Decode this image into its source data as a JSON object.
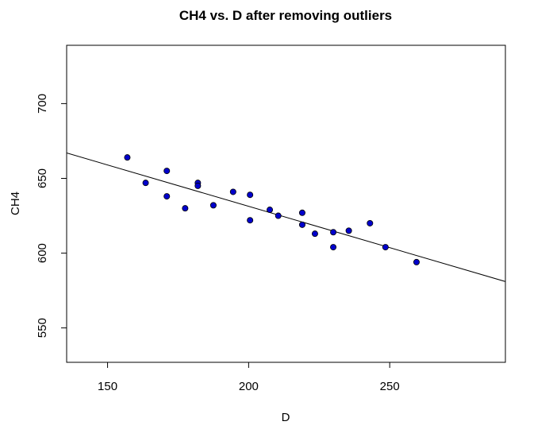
{
  "chart_data": {
    "type": "scatter",
    "title": "CH4 vs. D after removing outliers",
    "xlabel": "D",
    "ylabel": "CH4",
    "xlim": [
      135.5,
      291
    ],
    "ylim": [
      527,
      739
    ],
    "x_ticks": [
      150,
      200,
      250
    ],
    "y_ticks": [
      550,
      600,
      650,
      700
    ],
    "x_tick_labels": [
      "150",
      "200",
      "250"
    ],
    "y_tick_labels": [
      "550",
      "600",
      "650",
      "700"
    ],
    "grid": false,
    "legend": "none",
    "point_color": "#0000cc",
    "point_edge_color": "#000000",
    "line_color": "#000000",
    "points": [
      {
        "x": 157,
        "y": 664
      },
      {
        "x": 163.5,
        "y": 647
      },
      {
        "x": 171,
        "y": 655
      },
      {
        "x": 171,
        "y": 638
      },
      {
        "x": 177.5,
        "y": 630
      },
      {
        "x": 182,
        "y": 647
      },
      {
        "x": 182,
        "y": 645
      },
      {
        "x": 187.5,
        "y": 632
      },
      {
        "x": 194.5,
        "y": 641
      },
      {
        "x": 200.5,
        "y": 639
      },
      {
        "x": 200.5,
        "y": 622
      },
      {
        "x": 207.5,
        "y": 629
      },
      {
        "x": 210.5,
        "y": 625
      },
      {
        "x": 219,
        "y": 627
      },
      {
        "x": 219,
        "y": 619
      },
      {
        "x": 223.5,
        "y": 613
      },
      {
        "x": 230,
        "y": 614
      },
      {
        "x": 230,
        "y": 604
      },
      {
        "x": 235.5,
        "y": 615
      },
      {
        "x": 243,
        "y": 620
      },
      {
        "x": 248.5,
        "y": 604
      },
      {
        "x": 259.5,
        "y": 594
      }
    ],
    "fit_line": {
      "x": [
        135.5,
        291
      ],
      "y": [
        667,
        581
      ]
    }
  }
}
